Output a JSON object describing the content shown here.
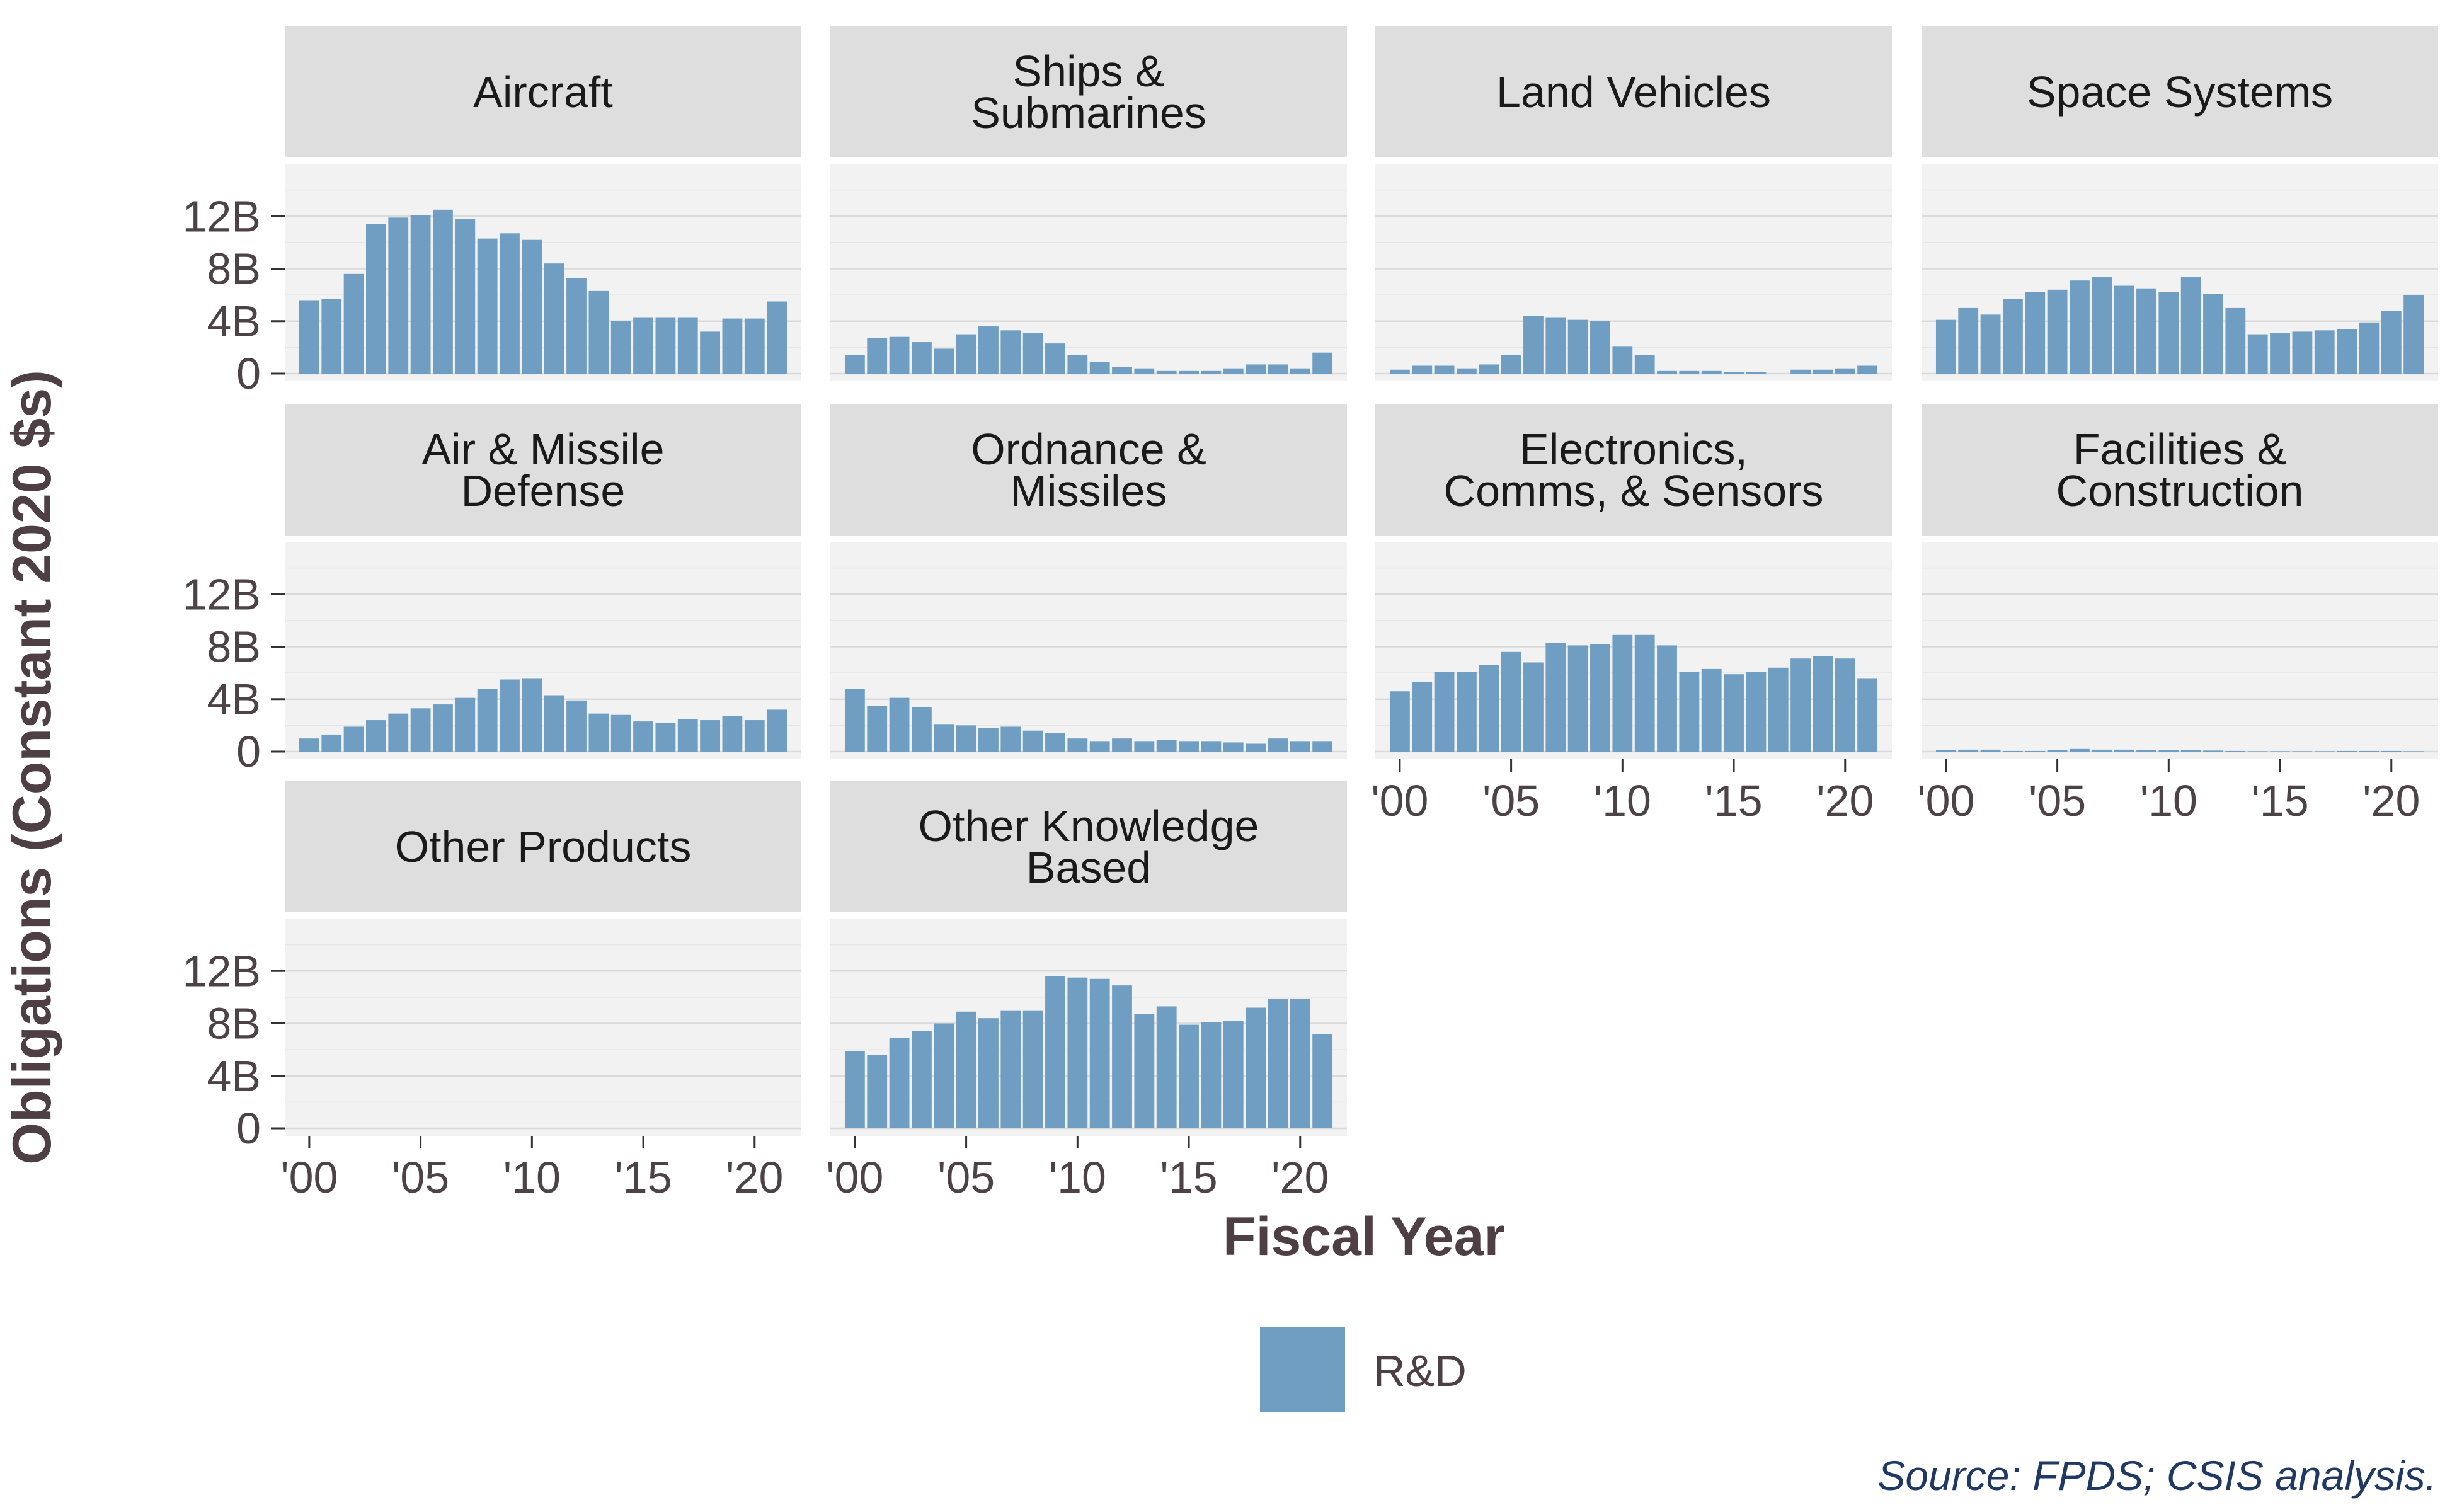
{
  "chart_data": {
    "type": "bar",
    "xlabel": "Fiscal Year",
    "ylabel": "Obligations (Constant 2020 $s)",
    "ylim": [
      0,
      16
    ],
    "y_ticks": [
      0,
      4,
      8,
      12
    ],
    "y_tick_labels": [
      "0",
      "4B",
      "8B",
      "12B"
    ],
    "x_ticks": [
      2000,
      2005,
      2010,
      2015,
      2020
    ],
    "x_tick_labels": [
      "'00",
      "'05",
      "'10",
      "'15",
      "'20"
    ],
    "years": [
      2000,
      2001,
      2002,
      2003,
      2004,
      2005,
      2006,
      2007,
      2008,
      2009,
      2010,
      2011,
      2012,
      2013,
      2014,
      2015,
      2016,
      2017,
      2018,
      2019,
      2020,
      2021
    ],
    "legend": {
      "label": "R&D",
      "color": "#6f9ec2"
    },
    "bar_color": "#6f9ec2",
    "panel_background": "#f2f2f2",
    "strip_background": "#dedede",
    "grid": true,
    "source": "Source: FPDS; CSIS analysis.",
    "facets": [
      {
        "title": [
          "Aircraft"
        ],
        "values": [
          5.6,
          5.7,
          7.6,
          11.4,
          11.9,
          12.1,
          12.5,
          11.8,
          10.3,
          10.7,
          10.2,
          8.4,
          7.3,
          6.3,
          4.0,
          4.3,
          4.3,
          4.3,
          3.2,
          4.2,
          4.2,
          5.5
        ]
      },
      {
        "title": [
          "Ships &",
          "Submarines"
        ],
        "values": [
          1.4,
          2.7,
          2.8,
          2.4,
          1.9,
          3.0,
          3.6,
          3.3,
          3.1,
          2.3,
          1.4,
          0.9,
          0.5,
          0.4,
          0.2,
          0.2,
          0.2,
          0.4,
          0.7,
          0.7,
          0.4,
          1.6
        ]
      },
      {
        "title": [
          "Land Vehicles"
        ],
        "values": [
          0.3,
          0.6,
          0.6,
          0.4,
          0.7,
          1.4,
          4.4,
          4.3,
          4.1,
          4.0,
          2.1,
          1.4,
          0.2,
          0.2,
          0.2,
          0.1,
          0.1,
          0.0,
          0.3,
          0.3,
          0.4,
          0.6
        ]
      },
      {
        "title": [
          "Space Systems"
        ],
        "values": [
          4.1,
          5.0,
          4.5,
          5.7,
          6.2,
          6.4,
          7.1,
          7.4,
          6.7,
          6.5,
          6.2,
          7.4,
          6.1,
          5.0,
          3.0,
          3.1,
          3.2,
          3.3,
          3.4,
          3.9,
          4.8,
          6.0
        ]
      },
      {
        "title": [
          "Air & Missile",
          "Defense"
        ],
        "values": [
          1.0,
          1.3,
          1.9,
          2.4,
          2.9,
          3.3,
          3.6,
          4.1,
          4.8,
          5.5,
          5.6,
          4.3,
          3.9,
          2.9,
          2.8,
          2.3,
          2.2,
          2.5,
          2.4,
          2.7,
          2.4,
          3.2
        ]
      },
      {
        "title": [
          "Ordnance &",
          "Missiles"
        ],
        "values": [
          4.8,
          3.5,
          4.1,
          3.4,
          2.1,
          2.0,
          1.8,
          1.9,
          1.6,
          1.4,
          1.0,
          0.8,
          1.0,
          0.8,
          0.9,
          0.8,
          0.8,
          0.7,
          0.6,
          1.0,
          0.8,
          0.8
        ]
      },
      {
        "title": [
          "Electronics,",
          "Comms, & Sensors"
        ],
        "values": [
          4.6,
          5.3,
          6.1,
          6.1,
          6.6,
          7.6,
          6.8,
          8.3,
          8.1,
          8.2,
          8.9,
          8.9,
          8.1,
          6.1,
          6.3,
          5.9,
          6.1,
          6.4,
          7.1,
          7.3,
          7.1,
          5.6
        ]
      },
      {
        "title": [
          "Facilities &",
          "Construction"
        ],
        "values": [
          0.1,
          0.15,
          0.15,
          0.05,
          0.05,
          0.1,
          0.2,
          0.15,
          0.15,
          0.1,
          0.1,
          0.1,
          0.08,
          0.05,
          0.03,
          0.03,
          0.03,
          0.03,
          0.05,
          0.05,
          0.05,
          0.03
        ]
      },
      {
        "title": [
          "Other Products"
        ],
        "values": [
          0,
          0,
          0,
          0,
          0,
          0,
          0,
          0,
          0,
          0,
          0,
          0,
          0,
          0,
          0,
          0,
          0,
          0,
          0,
          0,
          0,
          0
        ]
      },
      {
        "title": [
          "Other Knowledge",
          "Based"
        ],
        "values": [
          5.9,
          5.6,
          6.9,
          7.4,
          8.0,
          8.9,
          8.4,
          9.0,
          9.0,
          11.6,
          11.5,
          11.4,
          10.9,
          8.7,
          9.3,
          7.9,
          8.1,
          8.2,
          9.2,
          9.9,
          9.9,
          7.2
        ]
      }
    ]
  }
}
